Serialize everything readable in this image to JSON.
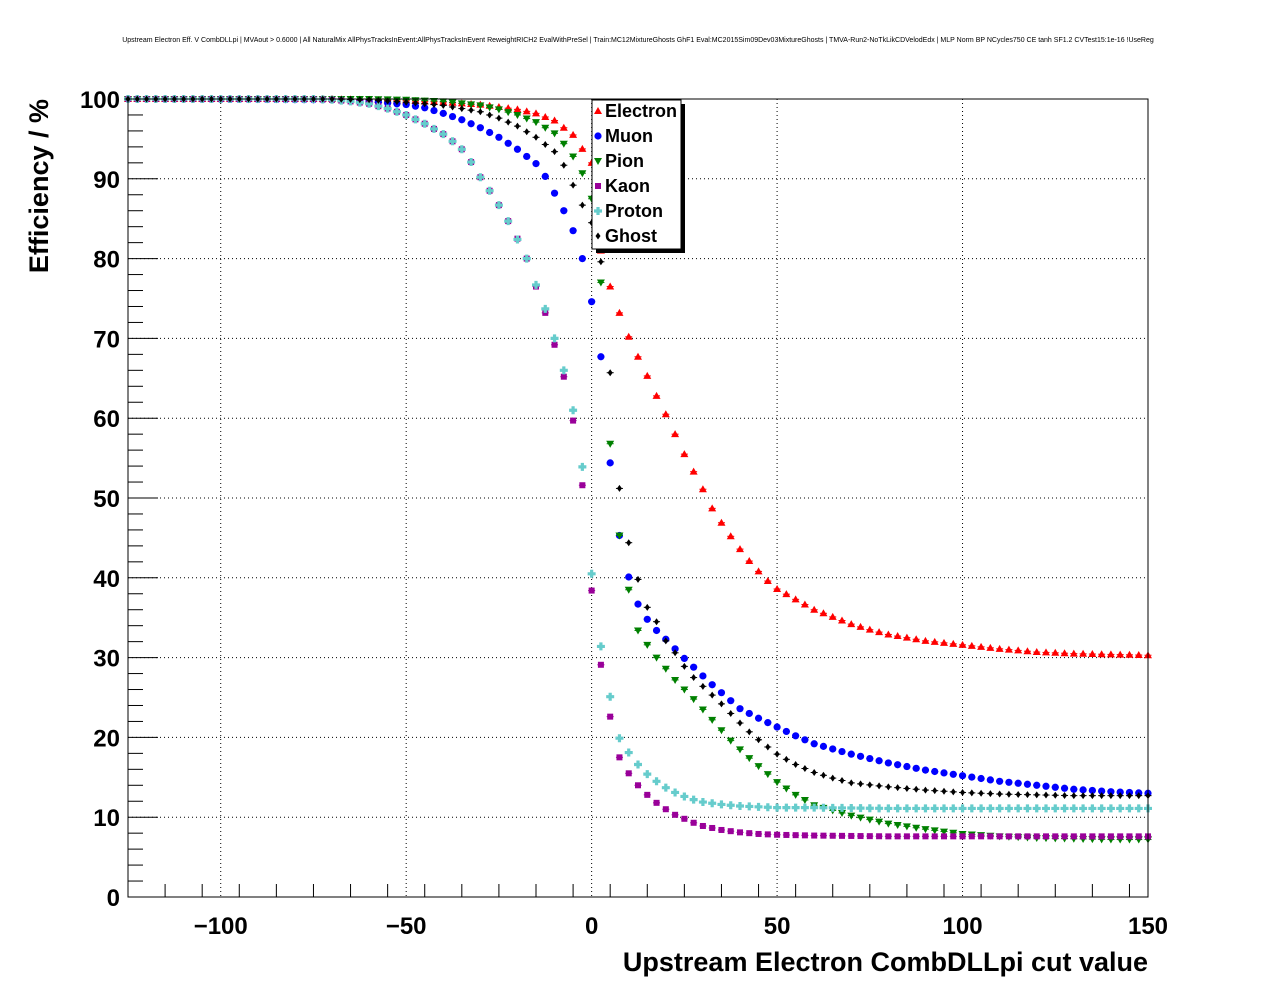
{
  "chart_data": {
    "type": "scatter",
    "title": "Upstream Electron Eff. V CombDLLpi | MVAout > 0.6000 | All NaturalMix AllPhysTracksInEvent:AllPhysTracksInEvent ReweightRICH2 EvalWithPreSel | Train:MC12MixtureGhosts GhF1 Eval:MC2015Sim09Dev03MixtureGhosts | TMVA-Run2-NoTkLikCDVelodEdx | MLP Norm BP NCycles750 CE tanh SF1.2 CVTest15:1e-16 !UseReg",
    "xlabel": "Upstream Electron CombDLLpi cut value",
    "ylabel": "Efficiency / %",
    "xlim": [
      -125,
      150
    ],
    "ylim": [
      0,
      100
    ],
    "xticks": [
      -100,
      -50,
      0,
      50,
      100,
      150
    ],
    "xtick_labels": [
      "−100",
      "−50",
      "0",
      "50",
      "100",
      "150"
    ],
    "yticks": [
      0,
      10,
      20,
      30,
      40,
      50,
      60,
      70,
      80,
      90,
      100
    ],
    "ytick_labels": [
      "0",
      "10",
      "20",
      "30",
      "40",
      "50",
      "60",
      "70",
      "80",
      "90",
      "100"
    ],
    "grid": true,
    "legend_position": "top-center",
    "x_step": 2.5,
    "series": [
      {
        "name": "Electron",
        "color": "#ff0000",
        "marker": "triangle-up",
        "values": [
          [
            -125,
            100
          ],
          [
            -70,
            100
          ],
          [
            -60,
            99.9
          ],
          [
            -50,
            99.8
          ],
          [
            -40,
            99.6
          ],
          [
            -30,
            99.3
          ],
          [
            -20,
            98.7
          ],
          [
            -15,
            98.2
          ],
          [
            -10,
            97.3
          ],
          [
            -5,
            95.5
          ],
          [
            0,
            92
          ],
          [
            2.5,
            81
          ],
          [
            5,
            76.5
          ],
          [
            7.5,
            73.2
          ],
          [
            10,
            70.2
          ],
          [
            12.5,
            67.7
          ],
          [
            15,
            65.3
          ],
          [
            17.5,
            62.8
          ],
          [
            20,
            60.5
          ],
          [
            22.5,
            58
          ],
          [
            25,
            55.5
          ],
          [
            27.5,
            53.3
          ],
          [
            30,
            51.1
          ],
          [
            32.5,
            48.7
          ],
          [
            35,
            46.9
          ],
          [
            37.5,
            45.2
          ],
          [
            40,
            43.6
          ],
          [
            42.5,
            42.1
          ],
          [
            45,
            40.8
          ],
          [
            47.5,
            39.6
          ],
          [
            50,
            38.6
          ],
          [
            55,
            37.3
          ],
          [
            60,
            36
          ],
          [
            65,
            35.1
          ],
          [
            70,
            34.2
          ],
          [
            75,
            33.5
          ],
          [
            80,
            32.9
          ],
          [
            90,
            32.1
          ],
          [
            100,
            31.6
          ],
          [
            110,
            31.1
          ],
          [
            120,
            30.7
          ],
          [
            130,
            30.5
          ],
          [
            140,
            30.4
          ],
          [
            150,
            30.3
          ]
        ]
      },
      {
        "name": "Muon",
        "color": "#0000ff",
        "marker": "circle",
        "values": [
          [
            -125,
            100
          ],
          [
            -70,
            99.9
          ],
          [
            -60,
            99.7
          ],
          [
            -50,
            99.3
          ],
          [
            -45,
            98.9
          ],
          [
            -40,
            98.2
          ],
          [
            -35,
            97.4
          ],
          [
            -30,
            96.4
          ],
          [
            -25,
            95.2
          ],
          [
            -20,
            93.7
          ],
          [
            -15,
            91.9
          ],
          [
            -12.5,
            90.3
          ],
          [
            -10,
            88.2
          ],
          [
            -7.5,
            86
          ],
          [
            -5,
            83.5
          ],
          [
            -2.5,
            80
          ],
          [
            0,
            74.6
          ],
          [
            2.5,
            67.7
          ],
          [
            5,
            54.4
          ],
          [
            7.5,
            45.3
          ],
          [
            10,
            40.1
          ],
          [
            12.5,
            36.7
          ],
          [
            15,
            34.8
          ],
          [
            17.5,
            33.4
          ],
          [
            20,
            32.3
          ],
          [
            22.5,
            31.1
          ],
          [
            25,
            29.9
          ],
          [
            27.5,
            28.8
          ],
          [
            30,
            27.7
          ],
          [
            32.5,
            26.6
          ],
          [
            35,
            25.6
          ],
          [
            37.5,
            24.6
          ],
          [
            40,
            23.6
          ],
          [
            45,
            22.4
          ],
          [
            50,
            21.3
          ],
          [
            55,
            20.2
          ],
          [
            60,
            19.2
          ],
          [
            70,
            17.9
          ],
          [
            80,
            16.8
          ],
          [
            90,
            15.9
          ],
          [
            100,
            15.2
          ],
          [
            110,
            14.5
          ],
          [
            120,
            14
          ],
          [
            130,
            13.5
          ],
          [
            140,
            13.2
          ],
          [
            150,
            13
          ]
        ]
      },
      {
        "name": "Pion",
        "color": "#008000",
        "marker": "triangle-down",
        "values": [
          [
            -125,
            100
          ],
          [
            -60,
            100
          ],
          [
            -50,
            99.9
          ],
          [
            -40,
            99.7
          ],
          [
            -30,
            99.2
          ],
          [
            -25,
            98.7
          ],
          [
            -20,
            98
          ],
          [
            -15,
            97.1
          ],
          [
            -10,
            95.7
          ],
          [
            -7.5,
            94.4
          ],
          [
            -5,
            92.8
          ],
          [
            -2.5,
            90.7
          ],
          [
            0,
            87.5
          ],
          [
            2.5,
            77
          ],
          [
            5,
            56.8
          ],
          [
            7.5,
            45.3
          ],
          [
            10,
            38.5
          ],
          [
            12.5,
            33.4
          ],
          [
            15,
            31.6
          ],
          [
            17.5,
            30
          ],
          [
            20,
            28.6
          ],
          [
            22.5,
            27.2
          ],
          [
            25,
            26
          ],
          [
            27.5,
            24.8
          ],
          [
            30,
            23.5
          ],
          [
            32.5,
            22.2
          ],
          [
            35,
            20.9
          ],
          [
            37.5,
            19.6
          ],
          [
            40,
            18.5
          ],
          [
            42.5,
            17.4
          ],
          [
            45,
            16.4
          ],
          [
            50,
            14.4
          ],
          [
            55,
            12.8
          ],
          [
            60,
            11.5
          ],
          [
            70,
            10.2
          ],
          [
            80,
            9.2
          ],
          [
            90,
            8.5
          ],
          [
            100,
            7.9
          ],
          [
            110,
            7.6
          ],
          [
            120,
            7.4
          ],
          [
            130,
            7.3
          ],
          [
            140,
            7.2
          ],
          [
            150,
            7.2
          ]
        ]
      },
      {
        "name": "Kaon",
        "color": "#990099",
        "marker": "square",
        "values": [
          [
            -125,
            100
          ],
          [
            -75,
            100
          ],
          [
            -70,
            99.9
          ],
          [
            -65,
            99.7
          ],
          [
            -60,
            99.4
          ],
          [
            -55,
            98.8
          ],
          [
            -50,
            98
          ],
          [
            -45,
            96.9
          ],
          [
            -40,
            95.6
          ],
          [
            -37.5,
            94.7
          ],
          [
            -35,
            93.7
          ],
          [
            -32.5,
            92.1
          ],
          [
            -30,
            90.2
          ],
          [
            -27.5,
            88.5
          ],
          [
            -25,
            86.7
          ],
          [
            -22.5,
            84.7
          ],
          [
            -20,
            82.5
          ],
          [
            -17.5,
            80
          ],
          [
            -15,
            76.5
          ],
          [
            -12.5,
            73.2
          ],
          [
            -10,
            69.2
          ],
          [
            -7.5,
            65.2
          ],
          [
            -5,
            59.7
          ],
          [
            -2.5,
            51.6
          ],
          [
            0,
            38.4
          ],
          [
            2.5,
            29.1
          ],
          [
            5,
            22.6
          ],
          [
            7.5,
            17.5
          ],
          [
            10,
            15.5
          ],
          [
            12.5,
            14
          ],
          [
            15,
            12.8
          ],
          [
            17.5,
            11.8
          ],
          [
            20,
            11
          ],
          [
            22.5,
            10.3
          ],
          [
            25,
            9.8
          ],
          [
            27.5,
            9.3
          ],
          [
            30,
            8.9
          ],
          [
            35,
            8.4
          ],
          [
            40,
            8.1
          ],
          [
            45,
            7.9
          ],
          [
            50,
            7.8
          ],
          [
            60,
            7.7
          ],
          [
            80,
            7.6
          ],
          [
            100,
            7.6
          ],
          [
            120,
            7.6
          ],
          [
            150,
            7.6
          ]
        ]
      },
      {
        "name": "Proton",
        "color": "#66cccc",
        "marker": "cross",
        "values": [
          [
            -125,
            100
          ],
          [
            -75,
            100
          ],
          [
            -70,
            99.9
          ],
          [
            -65,
            99.7
          ],
          [
            -60,
            99.4
          ],
          [
            -55,
            98.8
          ],
          [
            -50,
            98
          ],
          [
            -45,
            96.9
          ],
          [
            -40,
            95.6
          ],
          [
            -37.5,
            94.7
          ],
          [
            -35,
            93.7
          ],
          [
            -32.5,
            92.1
          ],
          [
            -30,
            90.2
          ],
          [
            -27.5,
            88.5
          ],
          [
            -25,
            86.7
          ],
          [
            -22.5,
            84.7
          ],
          [
            -20,
            82.4
          ],
          [
            -17.5,
            80
          ],
          [
            -15,
            76.7
          ],
          [
            -12.5,
            73.7
          ],
          [
            -10,
            70
          ],
          [
            -7.5,
            66
          ],
          [
            -5,
            61
          ],
          [
            -2.5,
            53.9
          ],
          [
            0,
            40.5
          ],
          [
            2.5,
            31.4
          ],
          [
            5,
            25.1
          ],
          [
            7.5,
            19.9
          ],
          [
            10,
            18.1
          ],
          [
            12.5,
            16.6
          ],
          [
            15,
            15.4
          ],
          [
            17.5,
            14.5
          ],
          [
            20,
            13.7
          ],
          [
            22.5,
            13.1
          ],
          [
            25,
            12.6
          ],
          [
            27.5,
            12.2
          ],
          [
            30,
            11.9
          ],
          [
            35,
            11.6
          ],
          [
            40,
            11.4
          ],
          [
            45,
            11.3
          ],
          [
            50,
            11.2
          ],
          [
            60,
            11.2
          ],
          [
            80,
            11.1
          ],
          [
            100,
            11.1
          ],
          [
            120,
            11.1
          ],
          [
            150,
            11.1
          ]
        ]
      },
      {
        "name": "Ghost",
        "color": "#000000",
        "marker": "diamond",
        "values": [
          [
            -125,
            100
          ],
          [
            -70,
            100
          ],
          [
            -60,
            99.9
          ],
          [
            -50,
            99.6
          ],
          [
            -40,
            99.2
          ],
          [
            -30,
            98.4
          ],
          [
            -25,
            97.6
          ],
          [
            -20,
            96.6
          ],
          [
            -15,
            95.2
          ],
          [
            -12.5,
            94.3
          ],
          [
            -10,
            93.4
          ],
          [
            -7.5,
            91.7
          ],
          [
            -5,
            89.2
          ],
          [
            -2.5,
            86.7
          ],
          [
            0,
            84.5
          ],
          [
            2.5,
            79.6
          ],
          [
            5,
            65.7
          ],
          [
            7.5,
            51.2
          ],
          [
            10,
            44.4
          ],
          [
            12.5,
            39.8
          ],
          [
            15,
            36.3
          ],
          [
            17.5,
            34.5
          ],
          [
            20,
            32.1
          ],
          [
            22.5,
            30.6
          ],
          [
            25,
            28.9
          ],
          [
            27.5,
            27.5
          ],
          [
            30,
            26.4
          ],
          [
            32.5,
            25.3
          ],
          [
            35,
            24.2
          ],
          [
            37.5,
            23
          ],
          [
            40,
            21.8
          ],
          [
            42.5,
            20.7
          ],
          [
            45,
            19.7
          ],
          [
            47.5,
            18.8
          ],
          [
            50,
            17.9
          ],
          [
            55,
            16.6
          ],
          [
            60,
            15.6
          ],
          [
            65,
            14.9
          ],
          [
            70,
            14.3
          ],
          [
            80,
            13.8
          ],
          [
            90,
            13.4
          ],
          [
            100,
            13.1
          ],
          [
            110,
            12.9
          ],
          [
            120,
            12.8
          ],
          [
            130,
            12.7
          ],
          [
            140,
            12.7
          ],
          [
            150,
            12.7
          ]
        ]
      }
    ]
  }
}
